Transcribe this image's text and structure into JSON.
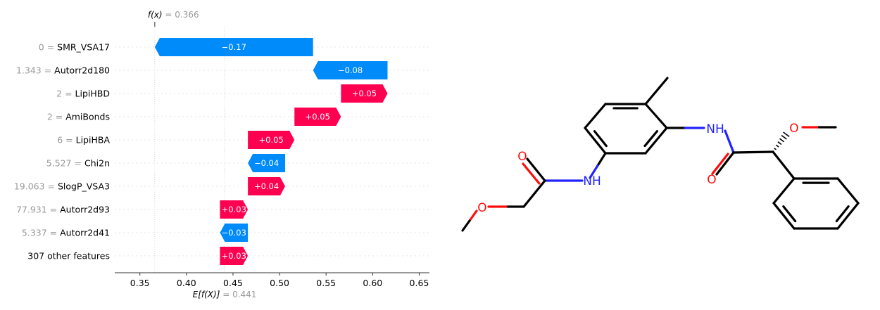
{
  "chart_data": {
    "type": "waterfall",
    "fx_label": "f(x)",
    "fx_value": "0.366",
    "base_label": "E[f(X)]",
    "base_value": "0.441",
    "f_x": 0.366,
    "base": 0.441,
    "xlim": [
      0.323,
      0.661
    ],
    "x_ticks": [
      "0.35",
      "0.40",
      "0.45",
      "0.50",
      "0.55",
      "0.60",
      "0.65"
    ],
    "grid": false,
    "features": [
      {
        "value": "0",
        "name": "SMR_VSA17",
        "contribution": -0.17,
        "label": "−0.17"
      },
      {
        "value": "1.343",
        "name": "Autorr2d180",
        "contribution": -0.08,
        "label": "−0.08"
      },
      {
        "value": "2",
        "name": "LipiHBD",
        "contribution": 0.05,
        "label": "+0.05"
      },
      {
        "value": "2",
        "name": "AmiBonds",
        "contribution": 0.05,
        "label": "+0.05"
      },
      {
        "value": "6",
        "name": "LipiHBA",
        "contribution": 0.05,
        "label": "+0.05"
      },
      {
        "value": "5.527",
        "name": "Chi2n",
        "contribution": -0.04,
        "label": "−0.04"
      },
      {
        "value": "19.063",
        "name": "SlogP_VSA3",
        "contribution": 0.04,
        "label": "+0.04"
      },
      {
        "value": "77.931",
        "name": "Autorr2d93",
        "contribution": 0.03,
        "label": "+0.03"
      },
      {
        "value": "5.337",
        "name": "Autorr2d41",
        "contribution": -0.03,
        "label": "−0.03"
      },
      {
        "value": "",
        "name": "307 other features",
        "contribution": 0.03,
        "label": "+0.03"
      }
    ],
    "colors": {
      "positive": "#ff0051",
      "negative": "#008bfb"
    }
  },
  "molecule": {
    "atoms": {
      "nh_left": "NH",
      "nh_right": "NH",
      "oxygen": "O"
    },
    "colors": {
      "bond": "#000000",
      "nitrogen": "#2222ff",
      "oxygen": "#ff0d0d"
    }
  }
}
